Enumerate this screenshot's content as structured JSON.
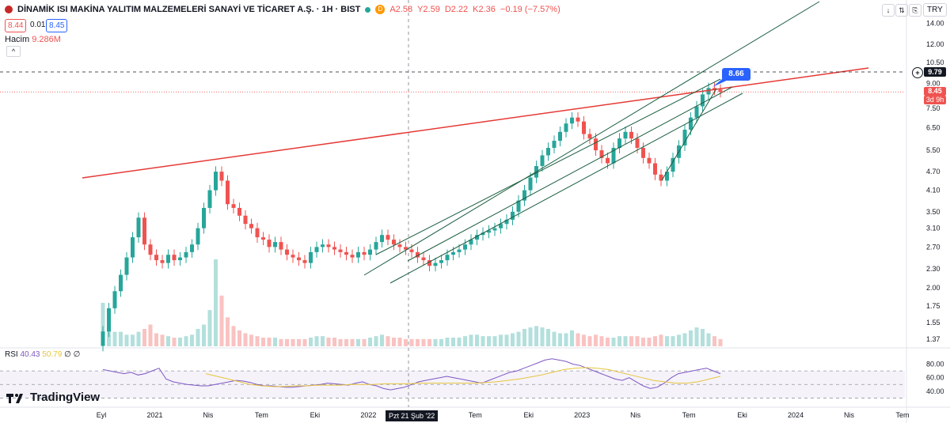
{
  "header": {
    "title": "DİNAMİK ISI MAKİNA YALITIM MALZEMELERİ SANAYİ VE TİCARET A.Ş. · 1H · BIST",
    "d_flag": "D",
    "open": "A2.58",
    "high": "Y2.59",
    "low": "D2.22",
    "close": "K2.36",
    "change": "−0.19 (−7.57%)",
    "sell_price": "8.44",
    "spread": "0.01",
    "buy_price": "8.45",
    "volume_label": "Hacim",
    "volume_value": "9.286M",
    "collapse_icon": "^"
  },
  "toolbar": {
    "down_icon": "↓",
    "arrows_icon": "⇅",
    "snapshot_icon": "⎘",
    "fullscreen_icon": "⛶",
    "currency": "TRY"
  },
  "rsi_legend": {
    "label": "RSI",
    "rsi": "40.43",
    "rsi_ma": "50.79",
    "extra1": "∅",
    "extra2": "∅"
  },
  "brand": {
    "name": "TradingView"
  },
  "price_labels": {
    "dashed": "9.79",
    "last": "8.45",
    "countdown": "3d 9h",
    "callout": "8.66"
  },
  "crosshair_date": "Pzt 21 Şub '22",
  "colors": {
    "up": "#26a69a",
    "down": "#ef5350",
    "rsi": "#7e57c2",
    "rsi_ma": "#e6c53c",
    "resistance": "#e53935",
    "channel": "#1b5e40",
    "callout": "#2962ff"
  },
  "chart_data": {
    "type": "candlestick",
    "scale": "log",
    "price_ticks": [
      "14.00",
      "12.00",
      "10.50",
      "9.00",
      "7.50",
      "6.50",
      "5.50",
      "4.70",
      "4.10",
      "3.50",
      "3.10",
      "2.70",
      "2.30",
      "2.00",
      "1.75",
      "1.55",
      "1.37"
    ],
    "rsi_ticks": [
      "80.00",
      "60.00",
      "40.00"
    ],
    "rsi_bands": [
      30,
      70
    ],
    "x_labels": [
      "Eyl",
      "2021",
      "Nis",
      "Tem",
      "Eki",
      "2022",
      "Nis",
      "Tem",
      "Eki",
      "2023",
      "Nis",
      "Tem",
      "Eki",
      "2024",
      "Nis",
      "Tem"
    ],
    "candles_close": [
      1.45,
      1.72,
      1.95,
      2.2,
      2.5,
      2.9,
      3.35,
      2.75,
      2.55,
      2.45,
      2.4,
      2.55,
      2.45,
      2.5,
      2.6,
      2.75,
      3.1,
      3.6,
      4.1,
      4.7,
      4.4,
      3.7,
      3.6,
      3.4,
      3.2,
      3.1,
      2.9,
      2.85,
      2.7,
      2.8,
      2.65,
      2.55,
      2.5,
      2.45,
      2.4,
      2.6,
      2.7,
      2.75,
      2.7,
      2.65,
      2.6,
      2.55,
      2.5,
      2.6,
      2.55,
      2.65,
      2.8,
      2.95,
      2.85,
      2.75,
      2.7,
      2.65,
      2.6,
      2.5,
      2.45,
      2.35,
      2.4,
      2.45,
      2.55,
      2.6,
      2.65,
      2.75,
      2.85,
      2.95,
      3.0,
      3.05,
      3.1,
      3.2,
      3.3,
      3.5,
      3.8,
      4.1,
      4.5,
      4.9,
      5.3,
      5.6,
      5.9,
      6.3,
      6.7,
      7.0,
      6.8,
      6.2,
      6.0,
      5.5,
      5.2,
      5.0,
      5.6,
      6.0,
      6.3,
      6.0,
      5.6,
      5.2,
      5.0,
      4.6,
      4.4,
      4.7,
      5.2,
      5.7,
      6.4,
      7.0,
      7.6,
      8.3,
      8.7,
      8.6,
      8.45
    ],
    "volume": [
      3,
      2,
      1,
      1,
      0.8,
      0.8,
      1,
      1.2,
      1.5,
      0.9,
      0.8,
      0.7,
      0.6,
      0.6,
      0.7,
      0.8,
      1.2,
      1.5,
      2.5,
      6,
      3.5,
      2.0,
      1.4,
      1.1,
      0.9,
      0.8,
      0.7,
      0.6,
      0.6,
      0.6,
      0.5,
      0.5,
      0.5,
      0.5,
      0.5,
      0.6,
      0.7,
      0.7,
      0.6,
      0.6,
      0.5,
      0.5,
      0.5,
      0.5,
      0.5,
      0.6,
      0.7,
      0.8,
      0.7,
      0.6,
      0.6,
      0.5,
      0.5,
      0.5,
      0.5,
      0.5,
      0.5,
      0.5,
      0.6,
      0.6,
      0.6,
      0.7,
      0.8,
      0.8,
      0.7,
      0.7,
      0.7,
      0.8,
      0.8,
      0.9,
      1.0,
      1.2,
      1.3,
      1.4,
      1.3,
      1.2,
      1.0,
      0.9,
      0.9,
      1.1,
      0.9,
      0.8,
      0.7,
      0.8,
      0.7,
      0.6,
      0.6,
      0.7,
      0.7,
      0.7,
      0.7,
      0.6,
      0.6,
      0.7,
      0.8,
      0.7,
      0.7,
      0.8,
      0.9,
      1.1,
      1.3,
      1.2,
      0.9,
      0.7,
      0.5
    ],
    "rsi": [
      72,
      70,
      68,
      66,
      68,
      64,
      66,
      70,
      74,
      58,
      54,
      52,
      50,
      49,
      48,
      48,
      50,
      52,
      54,
      56,
      55,
      53,
      50,
      48,
      48,
      47,
      46,
      46,
      47,
      48,
      49,
      50,
      52,
      51,
      50,
      49,
      52,
      54,
      50,
      48,
      44,
      42,
      44,
      46,
      50,
      54,
      56,
      58,
      60,
      62,
      60,
      58,
      56,
      54,
      52,
      56,
      60,
      64,
      68,
      70,
      74,
      78,
      82,
      86,
      88,
      86,
      84,
      80,
      78,
      74,
      70,
      66,
      62,
      58,
      56,
      60,
      54,
      48,
      44,
      46,
      52,
      60,
      66,
      68,
      70,
      72,
      74,
      70,
      66
    ],
    "rsi_ma": [
      66,
      62,
      58,
      54,
      50,
      48,
      47,
      47,
      48,
      48,
      49,
      49,
      49,
      50,
      50,
      50,
      51,
      51,
      51,
      52,
      52,
      52,
      52,
      52,
      52,
      53,
      54,
      56,
      58,
      61,
      64,
      68,
      72,
      74,
      75,
      74,
      72,
      68,
      64,
      60,
      56,
      54,
      52,
      52,
      54,
      58,
      62
    ]
  }
}
